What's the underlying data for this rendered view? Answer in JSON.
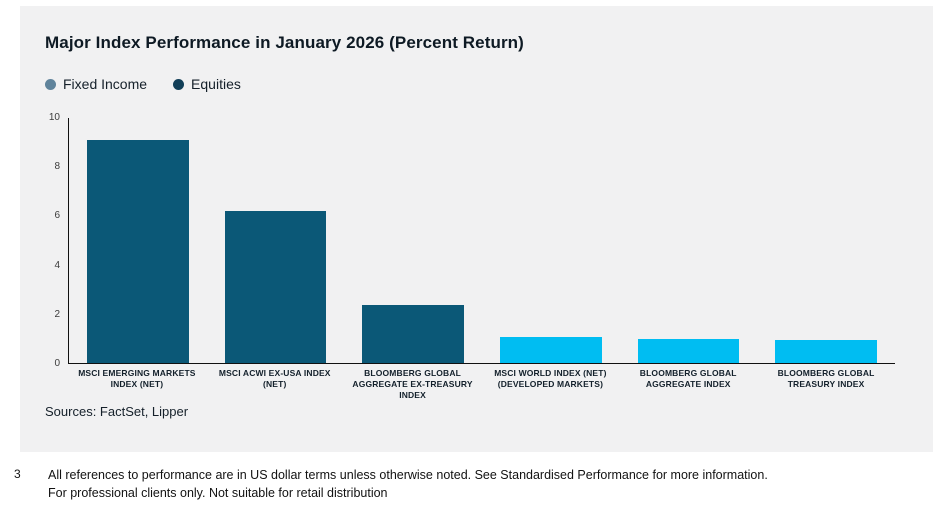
{
  "card": {
    "title": "Major Index Performance in January 2026 (Percent Return)",
    "legend": [
      {
        "label": "Fixed Income",
        "color": "#5f839b"
      },
      {
        "label": "Equities",
        "color": "#123f58"
      }
    ],
    "sources": "Sources: FactSet, Lipper"
  },
  "chart_data": {
    "type": "bar",
    "title": "Major Index Performance in January 2026 (Percent Return)",
    "categories": [
      "MSCI EMERGING MARKETS INDEX (NET)",
      "MSCI ACWI EX-USA INDEX (NET)",
      "BLOOMBERG GLOBAL AGGREGATE EX-TREASURY INDEX",
      "MSCI WORLD INDEX (NET) (DEVELOPED MARKETS)",
      "BLOOMBERG GLOBAL AGGREGATE INDEX",
      "BLOOMBERG GLOBAL TREASURY INDEX"
    ],
    "values": [
      9.1,
      6.2,
      2.35,
      1.05,
      1.0,
      0.95
    ],
    "series": [
      {
        "name": "Equities",
        "color": "#0b5877",
        "category_indexes": [
          0,
          1,
          2
        ]
      },
      {
        "name": "Fixed Income",
        "color": "#00bdf2",
        "category_indexes": [
          3,
          4,
          5
        ]
      }
    ],
    "bar_colors": [
      "#0b5877",
      "#0b5877",
      "#0b5877",
      "#00bdf2",
      "#00bdf2",
      "#00bdf2"
    ],
    "xlabel": "",
    "ylabel": "",
    "ylim": [
      0,
      10
    ],
    "yticks": [
      0,
      2,
      4,
      6,
      8,
      10
    ],
    "grid": false,
    "legend_position": "top-left"
  },
  "footer": {
    "page_number": "3",
    "line1": "All references to performance are in US dollar terms unless otherwise noted. See Standardised Performance for more information.",
    "line2": "For professional clients only. Not suitable for retail distribution"
  }
}
